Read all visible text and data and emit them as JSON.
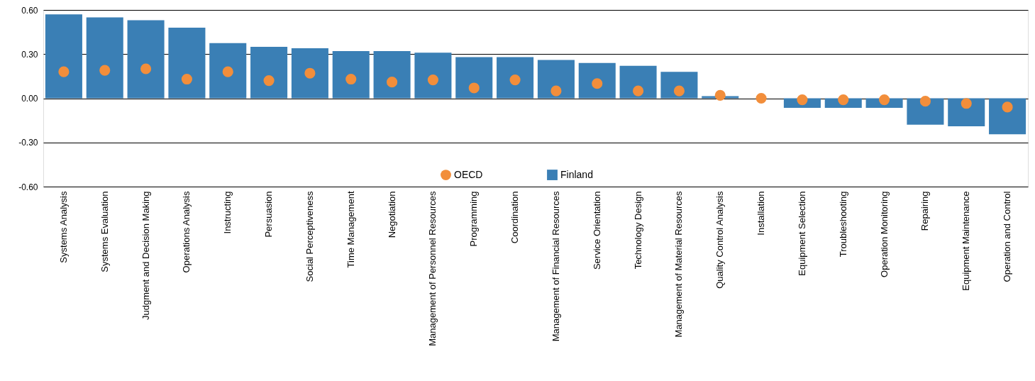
{
  "chart_data": {
    "type": "bar",
    "categories": [
      "Systems Analysis",
      "Systems Evaluation",
      "Judgment and Decision Making",
      "Operations Analysis",
      "Instructing",
      "Persuasion",
      "Social Perceptiveness",
      "Time Management",
      "Negotiation",
      "Management of Personnel Resources",
      "Programming",
      "Coordination",
      "Management of Financial Resources",
      "Service Orientation",
      "Technology Design",
      "Management of Material Resources",
      "Quality Control Analysis",
      "Installation",
      "Equipment Selection",
      "Troubleshooting",
      "Operation Monitoring",
      "Repairing",
      "Equipment Maintenance",
      "Operation and Control"
    ],
    "series": [
      {
        "name": "OECD",
        "type": "scatter",
        "color": "#f28e3b",
        "values": [
          0.18,
          0.19,
          0.2,
          0.13,
          0.18,
          0.12,
          0.17,
          0.13,
          0.11,
          0.125,
          0.07,
          0.125,
          0.05,
          0.1,
          0.05,
          0.05,
          0.02,
          0.0,
          -0.01,
          -0.01,
          -0.01,
          -0.02,
          -0.035,
          -0.06
        ]
      },
      {
        "name": "Finland",
        "color": "#3a7fb5",
        "values": [
          0.57,
          0.55,
          0.53,
          0.48,
          0.375,
          0.35,
          0.34,
          0.32,
          0.32,
          0.31,
          0.28,
          0.28,
          0.26,
          0.24,
          0.22,
          0.18,
          0.015,
          0.0,
          -0.065,
          -0.065,
          -0.065,
          -0.18,
          -0.19,
          -0.245
        ]
      }
    ],
    "ylim": [
      -0.6,
      0.6
    ],
    "yticks": [
      {
        "value": -0.6,
        "label": "-0.60"
      },
      {
        "value": -0.3,
        "label": "-0.30"
      },
      {
        "value": 0,
        "label": "0.00"
      },
      {
        "value": 0.3,
        "label": "0.30"
      },
      {
        "value": 0.6,
        "label": "0.60"
      }
    ],
    "grid": "y",
    "legend": "bottom",
    "marker": "circle"
  }
}
